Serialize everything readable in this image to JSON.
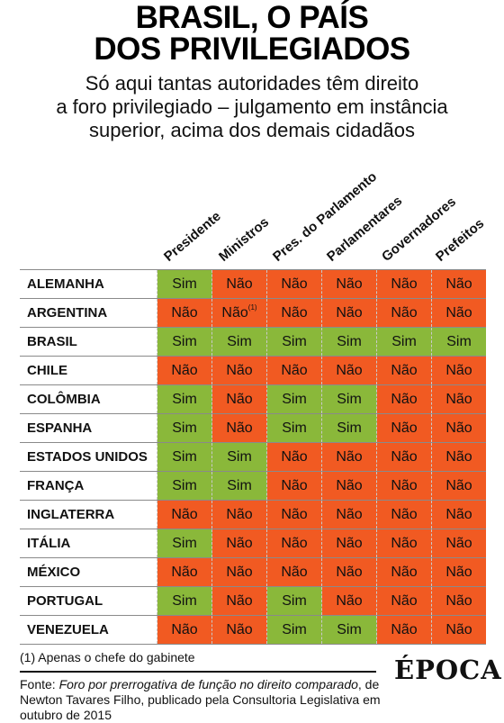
{
  "title_line1": "BRASIL, O PAÍS",
  "title_line2": "DOS PRIVILEGIADOS",
  "subtitle_line1": "Só aqui tantas autoridades têm direito",
  "subtitle_line2": "a foro privilegiado – julgamento em instância",
  "subtitle_line3": "superior, acima dos demais cidadãos",
  "columns": [
    "Presidente",
    "Ministros",
    "Pres. do Parlamento",
    "Parlamentares",
    "Governadores",
    "Prefeitos"
  ],
  "rows": [
    {
      "country": "ALEMANHA",
      "values": [
        "Sim",
        "Não",
        "Não",
        "Não",
        "Não",
        "Não"
      ]
    },
    {
      "country": "ARGENTINA",
      "values": [
        "Não",
        "Não",
        "Não",
        "Não",
        "Não",
        "Não"
      ]
    },
    {
      "country": "BRASIL",
      "values": [
        "Sim",
        "Sim",
        "Sim",
        "Sim",
        "Sim",
        "Sim"
      ]
    },
    {
      "country": "CHILE",
      "values": [
        "Não",
        "Não",
        "Não",
        "Não",
        "Não",
        "Não"
      ]
    },
    {
      "country": "COLÔMBIA",
      "values": [
        "Sim",
        "Não",
        "Sim",
        "Sim",
        "Não",
        "Não"
      ]
    },
    {
      "country": "ESPANHA",
      "values": [
        "Sim",
        "Não",
        "Sim",
        "Sim",
        "Não",
        "Não"
      ]
    },
    {
      "country": "ESTADOS UNIDOS",
      "values": [
        "Sim",
        "Sim",
        "Não",
        "Não",
        "Não",
        "Não"
      ]
    },
    {
      "country": "FRANÇA",
      "values": [
        "Sim",
        "Sim",
        "Não",
        "Não",
        "Não",
        "Não"
      ]
    },
    {
      "country": "INGLATERRA",
      "values": [
        "Não",
        "Não",
        "Não",
        "Não",
        "Não",
        "Não"
      ]
    },
    {
      "country": "ITÁLIA",
      "values": [
        "Sim",
        "Não",
        "Não",
        "Não",
        "Não",
        "Não"
      ]
    },
    {
      "country": "MÉXICO",
      "values": [
        "Não",
        "Não",
        "Não",
        "Não",
        "Não",
        "Não"
      ]
    },
    {
      "country": "PORTUGAL",
      "values": [
        "Sim",
        "Não",
        "Sim",
        "Não",
        "Não",
        "Não"
      ]
    },
    {
      "country": "VENEZUELA",
      "values": [
        "Não",
        "Não",
        "Sim",
        "Sim",
        "Não",
        "Não"
      ]
    }
  ],
  "argentina_ministros_note": "(1)",
  "footnote": "(1) Apenas o chefe do gabinete",
  "logo": "ÉPOCA",
  "source_prefix": "Fonte: ",
  "source_work": "Foro por prerrogativa de função no direito comparado",
  "source_rest": ", de Newton Tavares Filho, publicado pela Consultoria Legislativa em outubro de 2015",
  "colors": {
    "sim": "#8ab83a",
    "nao": "#f15a22"
  }
}
